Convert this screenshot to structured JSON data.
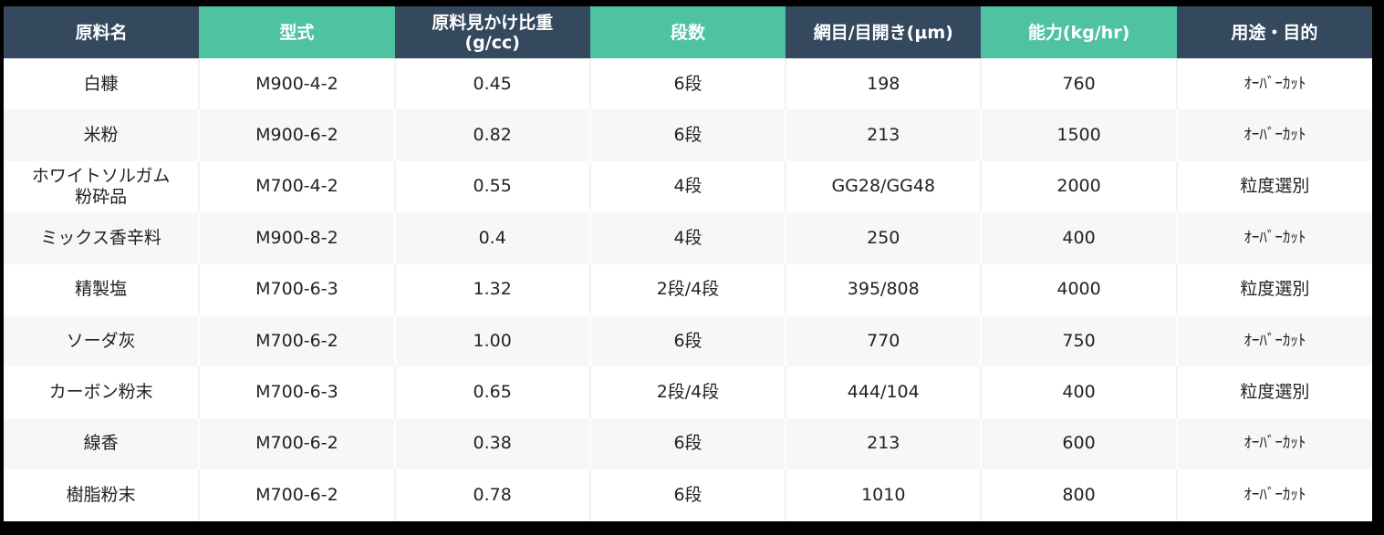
{
  "table": {
    "headers": [
      {
        "label": "原料名",
        "style": "navy"
      },
      {
        "label": "型式",
        "style": "green"
      },
      {
        "label": "原料見かけ比重",
        "sub": "(g/cc)",
        "style": "navy"
      },
      {
        "label": "段数",
        "style": "green"
      },
      {
        "label": "網目/目開き(μm)",
        "style": "navy"
      },
      {
        "label": "能力(kg/hr)",
        "style": "green"
      },
      {
        "label": "用途・目的",
        "style": "navy"
      }
    ],
    "rows": [
      {
        "material": "白糠",
        "model": "M900-4-2",
        "bulk_density": "0.45",
        "stages": "6段",
        "mesh": "198",
        "capacity": "760",
        "purpose": "ｵｰﾊﾞｰｶｯﾄ"
      },
      {
        "material": "米粉",
        "model": "M900-6-2",
        "bulk_density": "0.82",
        "stages": "6段",
        "mesh": "213",
        "capacity": "1500",
        "purpose": "ｵｰﾊﾞｰｶｯﾄ"
      },
      {
        "material": "ホワイトソルガム粉砕品",
        "material_line1": "ホワイトソルガム",
        "material_line2": "粉砕品",
        "model": "M700-4-2",
        "bulk_density": "0.55",
        "stages": "4段",
        "mesh": "GG28/GG48",
        "capacity": "2000",
        "purpose": "粒度選別"
      },
      {
        "material": "ミックス香辛料",
        "model": "M900-8-2",
        "bulk_density": "0.4",
        "stages": "4段",
        "mesh": "250",
        "capacity": "400",
        "purpose": "ｵｰﾊﾞｰｶｯﾄ"
      },
      {
        "material": "精製塩",
        "model": "M700-6-3",
        "bulk_density": "1.32",
        "stages": "2段/4段",
        "mesh": "395/808",
        "capacity": "4000",
        "purpose": "粒度選別"
      },
      {
        "material": "ソーダ灰",
        "model": "M700-6-2",
        "bulk_density": "1.00",
        "stages": "6段",
        "mesh": "770",
        "capacity": "750",
        "purpose": "ｵｰﾊﾞｰｶｯﾄ"
      },
      {
        "material": "カーボン粉末",
        "model": "M700-6-3",
        "bulk_density": "0.65",
        "stages": "2段/4段",
        "mesh": "444/104",
        "capacity": "400",
        "purpose": "粒度選別"
      },
      {
        "material": "線香",
        "model": "M700-6-2",
        "bulk_density": "0.38",
        "stages": "6段",
        "mesh": "213",
        "capacity": "600",
        "purpose": "ｵｰﾊﾞｰｶｯﾄ"
      },
      {
        "material": "樹脂粉末",
        "model": "M700-6-2",
        "bulk_density": "0.78",
        "stages": "6段",
        "mesh": "1010",
        "capacity": "800",
        "purpose": "ｵｰﾊﾞｰｶｯﾄ"
      }
    ]
  },
  "colors": {
    "header_navy": "#34495e",
    "header_green": "#4fc3a1",
    "row_odd": "#ffffff",
    "row_even": "#f7f7f7",
    "background": "#000000"
  }
}
